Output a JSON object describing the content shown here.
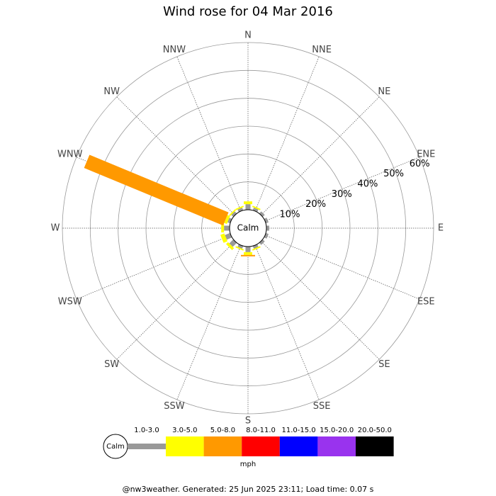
{
  "chart_data": {
    "type": "windrose",
    "title": "Wind rose for 04 Mar 2016",
    "categories": [
      "N",
      "NNE",
      "NE",
      "ENE",
      "E",
      "ESE",
      "SE",
      "SSE",
      "S",
      "SSW",
      "SW",
      "WSW",
      "W",
      "WNW",
      "NW",
      "NNW"
    ],
    "calm_label": "Calm",
    "rlim": [
      0,
      60
    ],
    "rticks": [
      {
        "value": 10,
        "label": "10%"
      },
      {
        "value": 20,
        "label": "20%"
      },
      {
        "value": 30,
        "label": "30%"
      },
      {
        "value": 40,
        "label": "40%"
      },
      {
        "value": 50,
        "label": "50%"
      },
      {
        "value": 60,
        "label": "60%"
      }
    ],
    "series": [
      {
        "name": "1.0-3.0",
        "color": "#999999",
        "values": [
          2,
          1,
          1,
          1,
          1,
          1,
          1,
          1,
          2,
          1,
          2,
          2,
          2,
          1,
          1,
          1
        ]
      },
      {
        "name": "3.0-5.0",
        "color": "#ffff00",
        "values": [
          1,
          0.5,
          0,
          0,
          0,
          0,
          0,
          0.5,
          1,
          0.5,
          1,
          1.5,
          1,
          1,
          0.5,
          0.5
        ]
      },
      {
        "name": "5.0-8.0",
        "color": "#ff9900",
        "values": [
          0,
          0,
          0,
          0,
          0,
          0,
          0,
          0,
          0.5,
          0,
          0,
          0,
          0,
          54,
          0,
          0
        ]
      },
      {
        "name": "8.0-11.0",
        "color": "#ff0000",
        "values": [
          0,
          0,
          0,
          0,
          0,
          0,
          0,
          0,
          0,
          0,
          0,
          0,
          0,
          0,
          0,
          0
        ]
      },
      {
        "name": "11.0-15.0",
        "color": "#0000ff",
        "values": [
          0,
          0,
          0,
          0,
          0,
          0,
          0,
          0,
          0,
          0,
          0,
          0,
          0,
          0,
          0,
          0
        ]
      },
      {
        "name": "15.0-20.0",
        "color": "#9933ee",
        "values": [
          0,
          0,
          0,
          0,
          0,
          0,
          0,
          0,
          0,
          0,
          0,
          0,
          0,
          0,
          0,
          0
        ]
      },
      {
        "name": "20.0-50.0",
        "color": "#000000",
        "values": [
          0,
          0,
          0,
          0,
          0,
          0,
          0,
          0,
          0,
          0,
          0,
          0,
          0,
          0,
          0,
          0
        ]
      }
    ],
    "unit": "mph",
    "footer": "@nw3weather. Generated: 25 Jun 2025 23:11; Load time: 0.07 s"
  }
}
